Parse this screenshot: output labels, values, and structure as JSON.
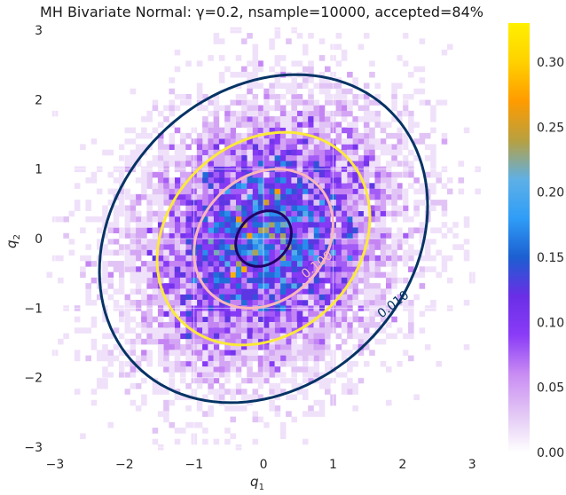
{
  "chart_data": {
    "type": "heatmap",
    "title": "MH Bivariate Normal: γ=0.2, nsample=10000, accepted=84%",
    "xlabel": "q",
    "xlabel_sub": "1",
    "ylabel": "q",
    "ylabel_sub": "2",
    "xlim": [
      -3.05,
      3.1
    ],
    "ylim": [
      -3.05,
      3.05
    ],
    "x_ticks": [
      -3,
      -2,
      -1,
      0,
      1,
      2,
      3
    ],
    "y_ticks": [
      -3,
      -2,
      -1,
      0,
      1,
      2,
      3
    ],
    "grid": true,
    "histogram": {
      "samples": 10000,
      "bins_per_unit": 12.5,
      "correlation": 0.2,
      "color_max": 0.33
    },
    "colorbar": {
      "ticks": [
        0.0,
        0.05,
        0.1,
        0.15,
        0.2,
        0.25,
        0.3
      ],
      "tick_labels": [
        "0.00",
        "0.05",
        "0.10",
        "0.15",
        "0.20",
        "0.25",
        "0.30"
      ],
      "range": [
        0,
        0.33
      ],
      "colors": [
        "#ffffff",
        "#e2c6f5",
        "#c98cf3",
        "#8a3cf7",
        "#6a2ee6",
        "#1c5fd1",
        "#2f9df7",
        "#5eb0e6",
        "#b8a040",
        "#ff9b00",
        "#ffd100",
        "#fff000"
      ]
    },
    "contours": [
      {
        "level": 0.01,
        "label": "0.010",
        "color": "#043364",
        "scale": 2.36
      },
      {
        "level": 0.05,
        "label": "",
        "color": "#fbe93b",
        "scale": 1.53
      },
      {
        "level": 0.1,
        "label": "0.100",
        "color": "#f9b7bb",
        "scale": 1.0
      },
      {
        "level": 0.15,
        "label": "",
        "color": "#210264",
        "scale": 0.4
      }
    ]
  }
}
